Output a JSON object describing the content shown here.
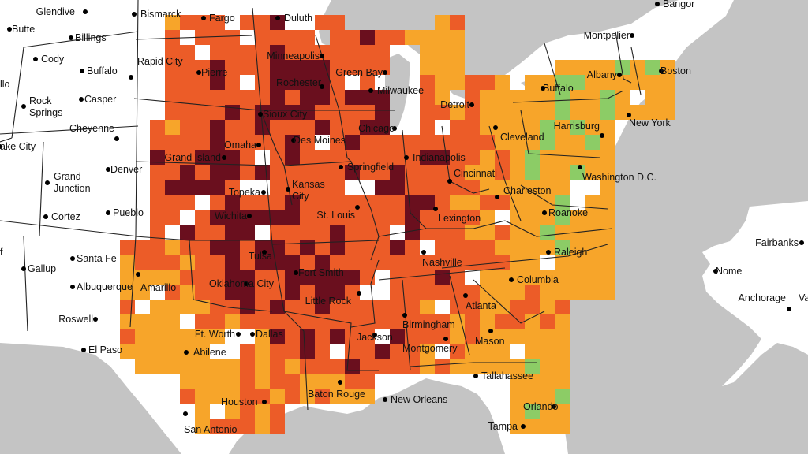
{
  "map": {
    "colors": {
      "background": "#c4c4c4",
      "land": "#ffffff",
      "border": "#222222",
      "risk_low": "#8ccc66",
      "risk_moderate": "#f7a52a",
      "risk_high": "#ec5c28",
      "risk_very_high": "#6a0f1e"
    },
    "levels": [
      "low",
      "moderate",
      "high",
      "very_high"
    ],
    "cities": [
      {
        "id": "glendive",
        "label": "Glendive"
      },
      {
        "id": "bismarck",
        "label": "Bismarck"
      },
      {
        "id": "fargo",
        "label": "Fargo"
      },
      {
        "id": "duluth",
        "label": "Duluth"
      },
      {
        "id": "bangor",
        "label": "Bangor"
      },
      {
        "id": "butte",
        "label": "Butte"
      },
      {
        "id": "billings",
        "label": "Billings"
      },
      {
        "id": "montpelier",
        "label": "Montpelier"
      },
      {
        "id": "cody",
        "label": "Cody"
      },
      {
        "id": "rapid-city",
        "label": "Rapid City"
      },
      {
        "id": "minneapolis",
        "label": "Minneapolis"
      },
      {
        "id": "buffalo-wy",
        "label": "Buffalo"
      },
      {
        "id": "pierre",
        "label": "Pierre"
      },
      {
        "id": "green-bay",
        "label": "Green Bay"
      },
      {
        "id": "albany",
        "label": "Albany"
      },
      {
        "id": "boston",
        "label": "Boston"
      },
      {
        "id": "rochester",
        "label": "Rochester"
      },
      {
        "id": "milwaukee",
        "label": "Milwaukee"
      },
      {
        "id": "buffalo-ny",
        "label": "Buffalo"
      },
      {
        "id": "casper",
        "label": "Casper"
      },
      {
        "id": "rock-springs-1",
        "label": "Rock"
      },
      {
        "id": "rock-springs-2",
        "label": "Springs"
      },
      {
        "id": "detroit",
        "label": "Detroit"
      },
      {
        "id": "sioux-city",
        "label": "Sioux City"
      },
      {
        "id": "new-york",
        "label": "New York"
      },
      {
        "id": "cheyenne",
        "label": "Cheyenne"
      },
      {
        "id": "harrisburg",
        "label": "Harrisburg"
      },
      {
        "id": "chicago",
        "label": "Chicago"
      },
      {
        "id": "des-moines",
        "label": "Des Moines"
      },
      {
        "id": "cleveland",
        "label": "Cleveland"
      },
      {
        "id": "salt-lake-city",
        "label": "ake City"
      },
      {
        "id": "omaha",
        "label": "Omaha"
      },
      {
        "id": "indianapolis",
        "label": "Indianapolis"
      },
      {
        "id": "grand-island",
        "label": "Grand Island"
      },
      {
        "id": "springfield",
        "label": "Springfield"
      },
      {
        "id": "denver",
        "label": "Denver"
      },
      {
        "id": "cincinnati",
        "label": "Cincinnati"
      },
      {
        "id": "washington",
        "label": "Washington D.C."
      },
      {
        "id": "grand-junction-1",
        "label": "Grand"
      },
      {
        "id": "grand-junction-2",
        "label": "Junction"
      },
      {
        "id": "topeka",
        "label": "Topeka"
      },
      {
        "id": "kansas-city-1",
        "label": "Kansas"
      },
      {
        "id": "kansas-city-2",
        "label": "City"
      },
      {
        "id": "charleston",
        "label": "Charleston"
      },
      {
        "id": "roanoke",
        "label": "Roanoke"
      },
      {
        "id": "wichita",
        "label": "Wichita"
      },
      {
        "id": "st-louis",
        "label": "St. Louis"
      },
      {
        "id": "cortez",
        "label": "Cortez"
      },
      {
        "id": "pueblo",
        "label": "Pueblo"
      },
      {
        "id": "lexington",
        "label": "Lexington"
      },
      {
        "id": "fairbanks",
        "label": "Fairbanks"
      },
      {
        "id": "santa-fe",
        "label": "Santa Fe"
      },
      {
        "id": "tulsa",
        "label": "Tulsa"
      },
      {
        "id": "nashville",
        "label": "Nashville"
      },
      {
        "id": "raleigh",
        "label": "Raleigh"
      },
      {
        "id": "gallup",
        "label": "Gallup"
      },
      {
        "id": "nome",
        "label": "Nome"
      },
      {
        "id": "fort-smith",
        "label": "Fort Smith"
      },
      {
        "id": "oklahoma-city",
        "label": "Oklahoma City"
      },
      {
        "id": "columbia",
        "label": "Columbia"
      },
      {
        "id": "albuquerque",
        "label": "Albuquerque"
      },
      {
        "id": "amarillo",
        "label": "Amarillo"
      },
      {
        "id": "little-rock",
        "label": "Little Rock"
      },
      {
        "id": "anchorage",
        "label": "Anchorage"
      },
      {
        "id": "valdez",
        "label": "Va"
      },
      {
        "id": "atlanta",
        "label": "Atlanta"
      },
      {
        "id": "roswell",
        "label": "Roswell"
      },
      {
        "id": "birmingham",
        "label": "Birmingham"
      },
      {
        "id": "ft-worth",
        "label": "Ft. Worth"
      },
      {
        "id": "dallas",
        "label": "Dallas"
      },
      {
        "id": "jackson",
        "label": "Jackson"
      },
      {
        "id": "mason",
        "label": "Mason"
      },
      {
        "id": "montgomery",
        "label": "Montgomery"
      },
      {
        "id": "el-paso",
        "label": "El Paso"
      },
      {
        "id": "abilene",
        "label": "Abilene"
      },
      {
        "id": "tallahassee",
        "label": "Tallahassee"
      },
      {
        "id": "baton-rouge",
        "label": "Baton Rouge"
      },
      {
        "id": "new-orleans",
        "label": "New Orleans"
      },
      {
        "id": "houston",
        "label": "Houston"
      },
      {
        "id": "orlando",
        "label": "Orlando"
      },
      {
        "id": "san-antonio",
        "label": "San Antonio"
      },
      {
        "id": "tampa",
        "label": "Tampa"
      },
      {
        "id": "reno",
        "label": "llo"
      },
      {
        "id": "flagstaff",
        "label": "f"
      }
    ]
  }
}
